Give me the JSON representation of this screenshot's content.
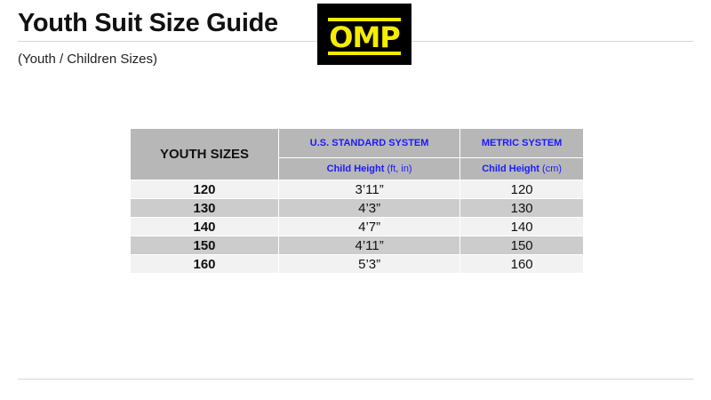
{
  "header": {
    "title": "Youth Suit Size Guide",
    "subtitle": "(Youth / Children Sizes)",
    "logo_text": "OMP",
    "logo_colors": {
      "background": "#000000",
      "foreground": "#f5ec00"
    }
  },
  "table": {
    "col_header": "YOUTH SIZES",
    "systems": [
      "U.S. STANDARD SYSTEM",
      "METRIC SYSTEM"
    ],
    "sub_headers": [
      {
        "label": "Child Height",
        "unit": "(ft, in)"
      },
      {
        "label": "Child Height",
        "unit": "(cm)"
      }
    ],
    "rows": [
      {
        "size": "120",
        "us": "3’11”",
        "metric": "120"
      },
      {
        "size": "130",
        "us": "4’3”",
        "metric": "130"
      },
      {
        "size": "140",
        "us": "4’7”",
        "metric": "140"
      },
      {
        "size": "150",
        "us": "4’11”",
        "metric": "150"
      },
      {
        "size": "160",
        "us": "5’3”",
        "metric": "160"
      }
    ]
  }
}
